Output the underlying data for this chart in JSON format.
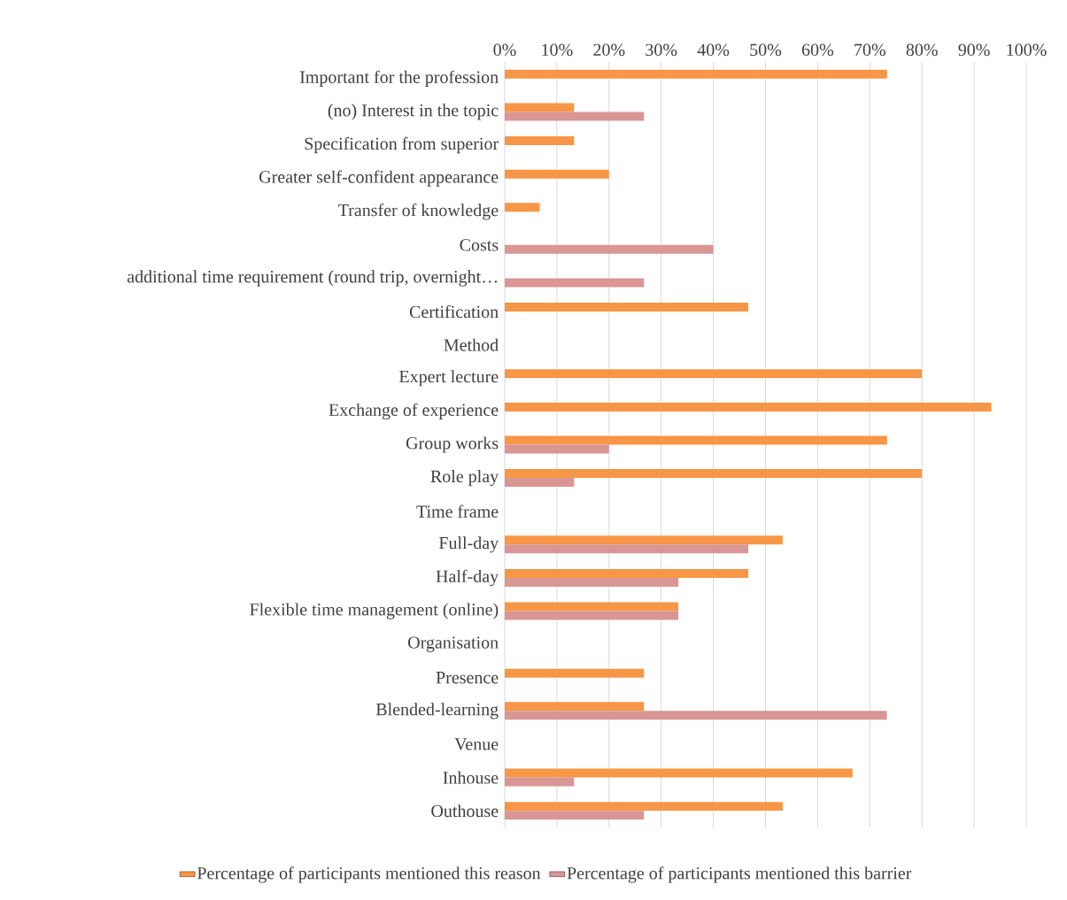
{
  "chart_data": {
    "type": "bar",
    "orientation": "horizontal",
    "categories": [
      "Important for the profession",
      "(no) Interest in the topic",
      "Specification from superior",
      "Greater self-confident appearance",
      "Transfer of  knowledge",
      "Costs",
      "additional time requirement (round trip, overnight…",
      "Certification",
      "Method",
      "Expert lecture",
      "Exchange of experience",
      "Group works",
      "Role play",
      "Time frame",
      "Full-day",
      "Half-day",
      "Flexible time management (online)",
      "Organisation",
      "Presence",
      "Blended-learning",
      "Venue",
      "Inhouse",
      "Outhouse"
    ],
    "series": [
      {
        "name": "Percentage of participants mentioned this reason",
        "color": "#f79646",
        "values": [
          73.3,
          13.3,
          13.3,
          20,
          6.7,
          null,
          null,
          46.7,
          null,
          80,
          93.3,
          73.3,
          80,
          null,
          53.3,
          46.7,
          33.3,
          null,
          26.7,
          26.7,
          null,
          66.7,
          53.3
        ]
      },
      {
        "name": "Percentage of participants mentioned this barrier",
        "color": "#d99694",
        "values": [
          null,
          26.7,
          null,
          null,
          null,
          40,
          26.7,
          null,
          null,
          null,
          null,
          20,
          13.3,
          null,
          46.7,
          33.3,
          33.3,
          null,
          null,
          73.3,
          null,
          13.3,
          26.7
        ]
      }
    ],
    "xlim": [
      0,
      100
    ],
    "xticks": [
      {
        "value": 0,
        "label": "0%"
      },
      {
        "value": 10,
        "label": "10%"
      },
      {
        "value": 20,
        "label": "20%"
      },
      {
        "value": 30,
        "label": "30%"
      },
      {
        "value": 40,
        "label": "40%"
      },
      {
        "value": 50,
        "label": "50%"
      },
      {
        "value": 60,
        "label": "60%"
      },
      {
        "value": 70,
        "label": "70%"
      },
      {
        "value": 80,
        "label": "80%"
      },
      {
        "value": 90,
        "label": "90%"
      },
      {
        "value": 100,
        "label": "100%"
      }
    ],
    "grid": "x",
    "legend": "bottom"
  }
}
